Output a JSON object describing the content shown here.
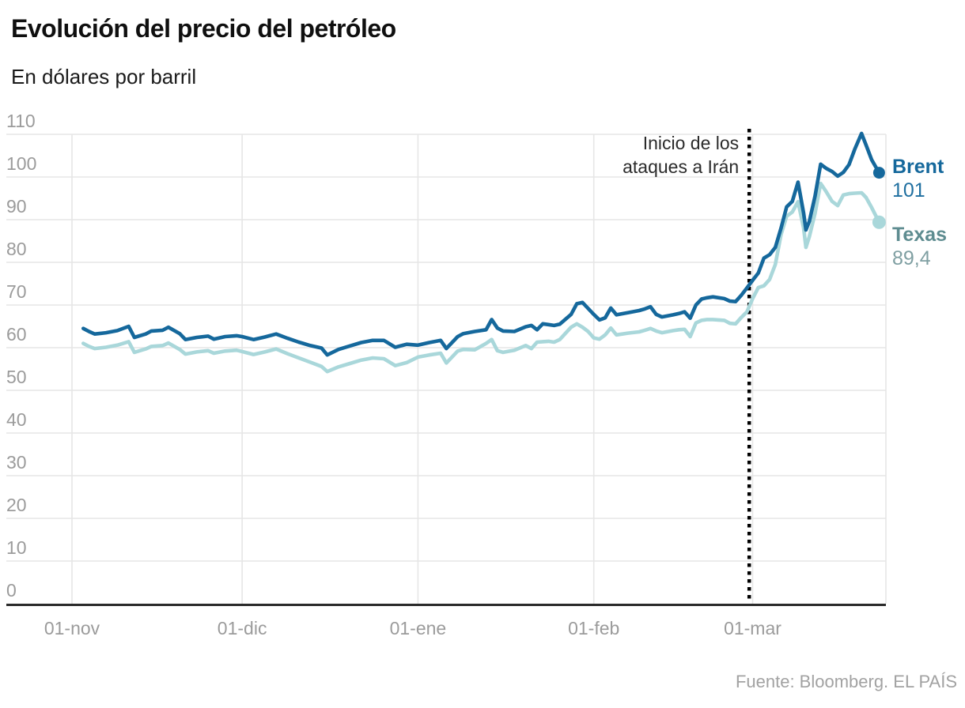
{
  "header": {
    "title": "Evolución del precio del petróleo",
    "subtitle": "En dólares por barril"
  },
  "annotation": {
    "line1": "Inicio de los",
    "line2": "ataques a Irán"
  },
  "legend": {
    "brent_label": "Brent",
    "brent_value": "101",
    "texas_label": "Texas",
    "texas_value": "89,4"
  },
  "source": "Fuente: Bloomberg. EL PAÍS",
  "colors": {
    "brent_line": "#15689c",
    "brent_text": "#15689c",
    "brent_value_text": "#1f6fa0",
    "texas_line": "#a9d7da",
    "texas_text": "#5e8c90",
    "texas_value_text": "#7f9fa2",
    "grid": "#e6e6e6",
    "axis": "#2b2b2b",
    "tick_text": "#9b9b9b",
    "event_line": "#000000",
    "annotation_text": "#2b2b2b",
    "source_text": "#a2a2a2"
  },
  "chart_data": {
    "type": "line",
    "title": "Evolución del precio del petróleo",
    "subtitle": "En dólares por barril",
    "ylabel": "dólares por barril",
    "ylim": [
      0,
      110
    ],
    "y_ticks": [
      0,
      10,
      20,
      30,
      40,
      50,
      60,
      70,
      80,
      90,
      100,
      110
    ],
    "x_unit": "days since 01-nov",
    "xlim": [
      0,
      143.6
    ],
    "x_ticks": [
      {
        "day": 0,
        "label": "01-nov"
      },
      {
        "day": 30,
        "label": "01-dic"
      },
      {
        "day": 61,
        "label": "01-ene"
      },
      {
        "day": 92,
        "label": "01-feb"
      },
      {
        "day": 120,
        "label": "01-mar"
      }
    ],
    "event_line": {
      "day": 119.4,
      "label": "Inicio de los ataques a Irán"
    },
    "grid": true,
    "legend_position": "right-end",
    "days": [
      2,
      3,
      4,
      6,
      8,
      10,
      11,
      13,
      14,
      16,
      17,
      19,
      20,
      22,
      24,
      25,
      27,
      29,
      30,
      32,
      34,
      36,
      38,
      40,
      42,
      44,
      45,
      47,
      49,
      51,
      53,
      55,
      57,
      59,
      61,
      63,
      65,
      66,
      68,
      69,
      71,
      73,
      74,
      75,
      76,
      78,
      80,
      81,
      82,
      83,
      84,
      85,
      86,
      88,
      89,
      90,
      91,
      92,
      93,
      94,
      95,
      96,
      98,
      100,
      101,
      102,
      103,
      104,
      106,
      107,
      108,
      109,
      110,
      111,
      112,
      113,
      115,
      116,
      117,
      118,
      119,
      120,
      121,
      122,
      123,
      124,
      125,
      126,
      127,
      128,
      129,
      129.4,
      130,
      131,
      132,
      133,
      134,
      135,
      136,
      137,
      138,
      139.2,
      140,
      141,
      142.3
    ],
    "series": [
      {
        "name": "Brent",
        "end_label": "101",
        "end_value": 101,
        "values": [
          64.5,
          63.8,
          63.2,
          63.5,
          64.0,
          65.0,
          62.4,
          63.2,
          63.9,
          64.1,
          64.8,
          63.3,
          61.9,
          62.4,
          62.7,
          62.0,
          62.6,
          62.8,
          62.6,
          61.9,
          62.5,
          63.2,
          62.2,
          61.3,
          60.5,
          59.9,
          58.3,
          59.6,
          60.4,
          61.2,
          61.7,
          61.7,
          60.1,
          60.8,
          60.6,
          61.2,
          61.7,
          59.8,
          62.6,
          63.3,
          63.8,
          64.2,
          66.6,
          64.6,
          63.9,
          63.8,
          64.9,
          65.2,
          64.2,
          65.6,
          65.4,
          65.2,
          65.5,
          67.8,
          70.3,
          70.6,
          69.2,
          67.8,
          66.5,
          67.0,
          69.3,
          67.7,
          68.2,
          68.7,
          69.1,
          69.6,
          67.8,
          67.2,
          67.7,
          68.0,
          68.4,
          66.9,
          70.0,
          71.4,
          71.7,
          71.9,
          71.5,
          70.9,
          70.8,
          72.3,
          74.0,
          75.8,
          77.5,
          81.0,
          81.8,
          83.5,
          88.0,
          93.0,
          94.3,
          98.8,
          91.5,
          87.6,
          89.6,
          95.5,
          103.0,
          102.0,
          101.3,
          100.2,
          101.1,
          102.9,
          106.5,
          110.2,
          107.5,
          104.0,
          101.0
        ]
      },
      {
        "name": "Texas",
        "end_label": "89,4",
        "end_value": 89.4,
        "values": [
          61.0,
          60.3,
          59.8,
          60.1,
          60.6,
          61.4,
          58.9,
          59.7,
          60.3,
          60.5,
          61.1,
          59.6,
          58.5,
          59.0,
          59.3,
          58.7,
          59.2,
          59.4,
          59.1,
          58.4,
          59.0,
          59.7,
          58.6,
          57.6,
          56.6,
          55.6,
          54.4,
          55.5,
          56.3,
          57.1,
          57.6,
          57.4,
          55.8,
          56.5,
          57.8,
          58.3,
          58.7,
          56.4,
          59.2,
          59.6,
          59.5,
          61.0,
          61.9,
          59.3,
          58.9,
          59.4,
          60.5,
          59.8,
          61.3,
          61.4,
          61.5,
          61.3,
          61.9,
          64.8,
          65.6,
          64.8,
          63.8,
          62.3,
          62.0,
          63.0,
          64.6,
          63.0,
          63.4,
          63.7,
          64.1,
          64.5,
          63.9,
          63.5,
          64.0,
          64.2,
          64.3,
          62.6,
          65.8,
          66.4,
          66.6,
          66.6,
          66.4,
          65.7,
          65.6,
          67.1,
          68.4,
          71.5,
          74.1,
          74.5,
          76.0,
          79.5,
          86.5,
          90.8,
          91.8,
          94.2,
          88.0,
          83.5,
          86.0,
          91.5,
          98.5,
          96.5,
          94.3,
          93.3,
          95.8,
          96.1,
          96.2,
          96.3,
          95.2,
          92.8,
          89.4
        ]
      }
    ]
  }
}
